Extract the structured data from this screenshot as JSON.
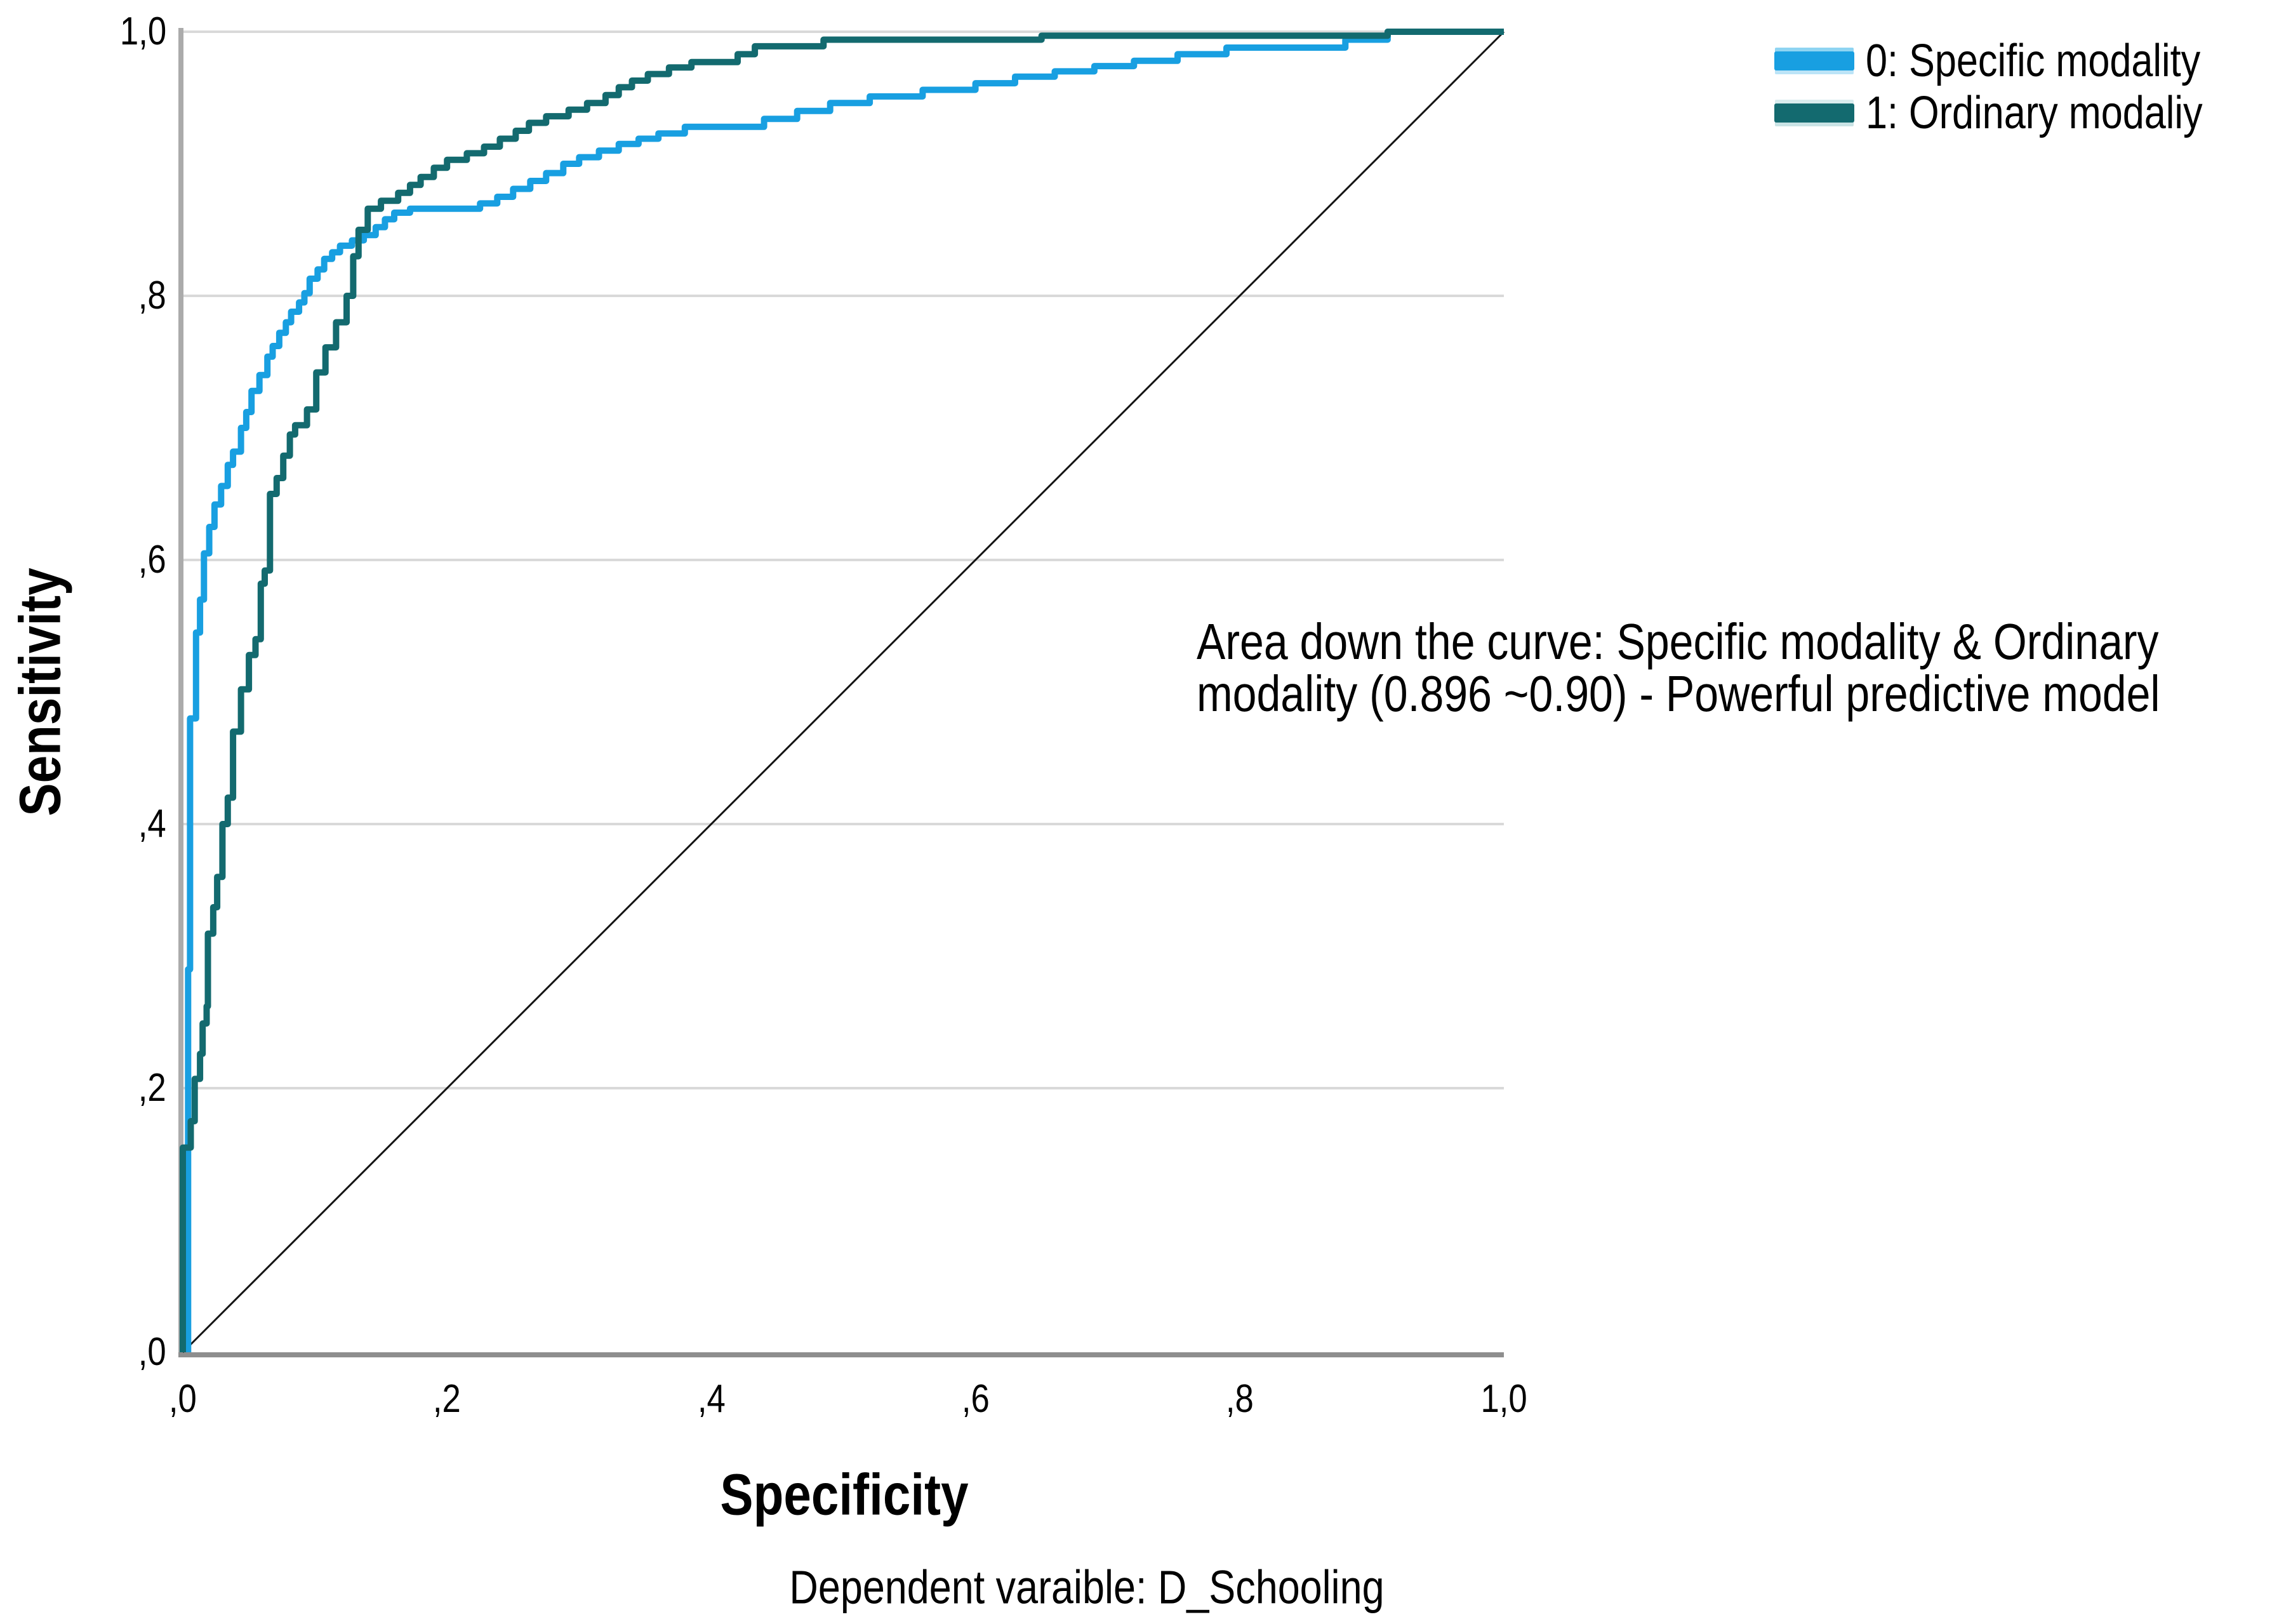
{
  "chart_data": {
    "type": "line",
    "subtype": "roc",
    "title": "",
    "xlabel": "Specificity",
    "ylabel": "Sensitivity",
    "caption": "Dependent varaible: D_Schooling",
    "xlim": [
      0,
      1
    ],
    "ylim": [
      0,
      1
    ],
    "grid": "horizontal-only",
    "grid_color": "#D9D9D9",
    "axis_color_left": "#ABABAB",
    "axis_color_bottom": "#8E8E8E",
    "x_ticks": [
      {
        "value": 0.0,
        "label": ",0"
      },
      {
        "value": 0.2,
        "label": ",2"
      },
      {
        "value": 0.4,
        "label": ",4"
      },
      {
        "value": 0.6,
        "label": ",6"
      },
      {
        "value": 0.8,
        "label": ",8"
      },
      {
        "value": 1.0,
        "label": "1,0"
      }
    ],
    "y_ticks": [
      {
        "value": 0.0,
        "label": ",0"
      },
      {
        "value": 0.2,
        "label": ",2"
      },
      {
        "value": 0.4,
        "label": ",4"
      },
      {
        "value": 0.6,
        "label": ",6"
      },
      {
        "value": 0.8,
        "label": ",8"
      },
      {
        "value": 1.0,
        "label": "1,0"
      }
    ],
    "legend": {
      "position": "top-right",
      "items": [
        {
          "key": "specific",
          "label": "0: Specific modality",
          "color": "#189FE1"
        },
        {
          "key": "ordinary",
          "label": "1: Ordinary modaliy",
          "color": "#136A6F"
        }
      ]
    },
    "annotation": {
      "line1": "Area down the curve: Specific modality & Ordinary",
      "line2": "modality (0.896 ~0.90) - Powerful predictive model",
      "auc": "0.896 ~0.90"
    },
    "reference_line": {
      "from": [
        0,
        0
      ],
      "to": [
        1,
        1
      ],
      "color": "#141414",
      "width": 3
    },
    "series": [
      {
        "key": "specific",
        "name": "0: Specific modality",
        "color": "#189FE1",
        "points": [
          [
            0.004,
            0
          ],
          [
            0.004,
            0.29
          ],
          [
            0.0055,
            0.29
          ],
          [
            0.0055,
            0.48
          ],
          [
            0.01,
            0.48
          ],
          [
            0.01,
            0.545
          ],
          [
            0.013,
            0.545
          ],
          [
            0.013,
            0.57
          ],
          [
            0.016,
            0.57
          ],
          [
            0.016,
            0.605
          ],
          [
            0.02,
            0.605
          ],
          [
            0.02,
            0.625
          ],
          [
            0.024,
            0.625
          ],
          [
            0.024,
            0.642
          ],
          [
            0.029,
            0.642
          ],
          [
            0.029,
            0.656
          ],
          [
            0.034,
            0.656
          ],
          [
            0.034,
            0.672
          ],
          [
            0.038,
            0.672
          ],
          [
            0.038,
            0.682
          ],
          [
            0.044,
            0.682
          ],
          [
            0.044,
            0.7
          ],
          [
            0.048,
            0.7
          ],
          [
            0.048,
            0.712
          ],
          [
            0.052,
            0.712
          ],
          [
            0.052,
            0.728
          ],
          [
            0.058,
            0.728
          ],
          [
            0.058,
            0.74
          ],
          [
            0.064,
            0.74
          ],
          [
            0.064,
            0.754
          ],
          [
            0.068,
            0.754
          ],
          [
            0.068,
            0.762
          ],
          [
            0.073,
            0.762
          ],
          [
            0.073,
            0.772
          ],
          [
            0.078,
            0.772
          ],
          [
            0.078,
            0.78
          ],
          [
            0.082,
            0.78
          ],
          [
            0.082,
            0.788
          ],
          [
            0.088,
            0.788
          ],
          [
            0.088,
            0.795
          ],
          [
            0.092,
            0.795
          ],
          [
            0.092,
            0.802
          ],
          [
            0.096,
            0.802
          ],
          [
            0.096,
            0.813
          ],
          [
            0.102,
            0.813
          ],
          [
            0.102,
            0.82
          ],
          [
            0.107,
            0.82
          ],
          [
            0.107,
            0.828
          ],
          [
            0.113,
            0.828
          ],
          [
            0.113,
            0.833
          ],
          [
            0.119,
            0.833
          ],
          [
            0.119,
            0.838
          ],
          [
            0.128,
            0.838
          ],
          [
            0.128,
            0.842
          ],
          [
            0.137,
            0.842
          ],
          [
            0.137,
            0.846
          ],
          [
            0.146,
            0.846
          ],
          [
            0.146,
            0.852
          ],
          [
            0.153,
            0.852
          ],
          [
            0.153,
            0.858
          ],
          [
            0.16,
            0.858
          ],
          [
            0.16,
            0.863
          ],
          [
            0.172,
            0.863
          ],
          [
            0.172,
            0.866
          ],
          [
            0.225,
            0.866
          ],
          [
            0.225,
            0.87
          ],
          [
            0.238,
            0.87
          ],
          [
            0.238,
            0.875
          ],
          [
            0.25,
            0.875
          ],
          [
            0.25,
            0.881
          ],
          [
            0.263,
            0.881
          ],
          [
            0.263,
            0.887
          ],
          [
            0.275,
            0.887
          ],
          [
            0.275,
            0.893
          ],
          [
            0.288,
            0.893
          ],
          [
            0.288,
            0.9
          ],
          [
            0.3,
            0.9
          ],
          [
            0.3,
            0.905
          ],
          [
            0.315,
            0.905
          ],
          [
            0.315,
            0.91
          ],
          [
            0.33,
            0.91
          ],
          [
            0.33,
            0.915
          ],
          [
            0.345,
            0.915
          ],
          [
            0.345,
            0.919
          ],
          [
            0.36,
            0.919
          ],
          [
            0.36,
            0.923
          ],
          [
            0.38,
            0.923
          ],
          [
            0.38,
            0.928
          ],
          [
            0.44,
            0.928
          ],
          [
            0.44,
            0.934
          ],
          [
            0.465,
            0.934
          ],
          [
            0.465,
            0.94
          ],
          [
            0.49,
            0.94
          ],
          [
            0.49,
            0.946
          ],
          [
            0.52,
            0.946
          ],
          [
            0.52,
            0.951
          ],
          [
            0.56,
            0.951
          ],
          [
            0.56,
            0.956
          ],
          [
            0.6,
            0.956
          ],
          [
            0.6,
            0.961
          ],
          [
            0.63,
            0.961
          ],
          [
            0.63,
            0.966
          ],
          [
            0.66,
            0.966
          ],
          [
            0.66,
            0.97
          ],
          [
            0.69,
            0.97
          ],
          [
            0.69,
            0.974
          ],
          [
            0.72,
            0.974
          ],
          [
            0.72,
            0.978
          ],
          [
            0.753,
            0.978
          ],
          [
            0.753,
            0.983
          ],
          [
            0.79,
            0.983
          ],
          [
            0.79,
            0.988
          ],
          [
            0.88,
            0.988
          ],
          [
            0.88,
            0.994
          ],
          [
            0.912,
            0.994
          ],
          [
            0.912,
            1.0
          ],
          [
            1.0,
            1.0
          ]
        ]
      },
      {
        "key": "ordinary",
        "name": "1: Ordinary modaliy",
        "color": "#136A6F",
        "points": [
          [
            0,
            0
          ],
          [
            0,
            0.155
          ],
          [
            0.006,
            0.155
          ],
          [
            0.006,
            0.175
          ],
          [
            0.009,
            0.175
          ],
          [
            0.009,
            0.207
          ],
          [
            0.013,
            0.207
          ],
          [
            0.013,
            0.226
          ],
          [
            0.015,
            0.226
          ],
          [
            0.015,
            0.249
          ],
          [
            0.018,
            0.249
          ],
          [
            0.018,
            0.262
          ],
          [
            0.019,
            0.262
          ],
          [
            0.019,
            0.317
          ],
          [
            0.023,
            0.317
          ],
          [
            0.023,
            0.337
          ],
          [
            0.026,
            0.337
          ],
          [
            0.026,
            0.36
          ],
          [
            0.03,
            0.36
          ],
          [
            0.03,
            0.4
          ],
          [
            0.034,
            0.4
          ],
          [
            0.034,
            0.42
          ],
          [
            0.038,
            0.42
          ],
          [
            0.038,
            0.47
          ],
          [
            0.044,
            0.47
          ],
          [
            0.044,
            0.502
          ],
          [
            0.05,
            0.502
          ],
          [
            0.05,
            0.528
          ],
          [
            0.055,
            0.528
          ],
          [
            0.055,
            0.54
          ],
          [
            0.059,
            0.54
          ],
          [
            0.059,
            0.582
          ],
          [
            0.062,
            0.582
          ],
          [
            0.062,
            0.592
          ],
          [
            0.066,
            0.592
          ],
          [
            0.066,
            0.65
          ],
          [
            0.071,
            0.65
          ],
          [
            0.071,
            0.662
          ],
          [
            0.076,
            0.662
          ],
          [
            0.076,
            0.679
          ],
          [
            0.081,
            0.679
          ],
          [
            0.081,
            0.695
          ],
          [
            0.085,
            0.695
          ],
          [
            0.085,
            0.702
          ],
          [
            0.094,
            0.702
          ],
          [
            0.094,
            0.714
          ],
          [
            0.101,
            0.714
          ],
          [
            0.101,
            0.742
          ],
          [
            0.108,
            0.742
          ],
          [
            0.108,
            0.761
          ],
          [
            0.116,
            0.761
          ],
          [
            0.116,
            0.78
          ],
          [
            0.124,
            0.78
          ],
          [
            0.124,
            0.8
          ],
          [
            0.129,
            0.8
          ],
          [
            0.129,
            0.83
          ],
          [
            0.133,
            0.83
          ],
          [
            0.133,
            0.85
          ],
          [
            0.14,
            0.85
          ],
          [
            0.14,
            0.866
          ],
          [
            0.15,
            0.866
          ],
          [
            0.15,
            0.872
          ],
          [
            0.163,
            0.872
          ],
          [
            0.163,
            0.878
          ],
          [
            0.172,
            0.878
          ],
          [
            0.172,
            0.884
          ],
          [
            0.18,
            0.884
          ],
          [
            0.18,
            0.89
          ],
          [
            0.19,
            0.89
          ],
          [
            0.19,
            0.897
          ],
          [
            0.2,
            0.897
          ],
          [
            0.2,
            0.903
          ],
          [
            0.215,
            0.903
          ],
          [
            0.215,
            0.908
          ],
          [
            0.228,
            0.908
          ],
          [
            0.228,
            0.913
          ],
          [
            0.24,
            0.913
          ],
          [
            0.24,
            0.919
          ],
          [
            0.252,
            0.919
          ],
          [
            0.252,
            0.925
          ],
          [
            0.262,
            0.925
          ],
          [
            0.262,
            0.931
          ],
          [
            0.275,
            0.931
          ],
          [
            0.275,
            0.936
          ],
          [
            0.292,
            0.936
          ],
          [
            0.292,
            0.941
          ],
          [
            0.306,
            0.941
          ],
          [
            0.306,
            0.946
          ],
          [
            0.32,
            0.946
          ],
          [
            0.32,
            0.952
          ],
          [
            0.33,
            0.952
          ],
          [
            0.33,
            0.958
          ],
          [
            0.34,
            0.958
          ],
          [
            0.34,
            0.963
          ],
          [
            0.352,
            0.963
          ],
          [
            0.352,
            0.968
          ],
          [
            0.368,
            0.968
          ],
          [
            0.368,
            0.973
          ],
          [
            0.385,
            0.973
          ],
          [
            0.385,
            0.977
          ],
          [
            0.42,
            0.977
          ],
          [
            0.42,
            0.983
          ],
          [
            0.433,
            0.983
          ],
          [
            0.433,
            0.989
          ],
          [
            0.485,
            0.989
          ],
          [
            0.485,
            0.994
          ],
          [
            0.65,
            0.994
          ],
          [
            0.65,
            0.997
          ],
          [
            0.912,
            0.997
          ],
          [
            0.912,
            1.0
          ],
          [
            1.0,
            1.0
          ]
        ]
      }
    ]
  }
}
